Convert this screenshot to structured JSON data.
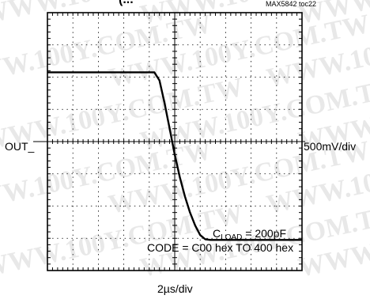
{
  "header": {
    "title_fragment": "(...",
    "doc_id": "MAX5842 toc22"
  },
  "watermark": "WWW.100Y.COM.TW",
  "colors": {
    "trace": "#000000",
    "grid": "#000000",
    "background": "#ffffff"
  },
  "chart_data": {
    "type": "line",
    "channel_label": "OUT_",
    "y_scale_label": "500mV/div",
    "x_scale_label": "2µs/div",
    "grid": true,
    "x_divisions": 10,
    "y_divisions": 8,
    "xlim": [
      0,
      10
    ],
    "ylim": [
      0,
      8
    ],
    "annotations": [
      {
        "main": "C",
        "sub": "LOAD",
        "rest": " = 200pF"
      },
      {
        "text": "CODE = C00 hex TO 400 hex"
      }
    ],
    "series": [
      {
        "points": [
          [
            0,
            6.15
          ],
          [
            4.2,
            6.15
          ],
          [
            4.4,
            5.9
          ],
          [
            4.6,
            5.2
          ],
          [
            4.8,
            4.4
          ],
          [
            5.0,
            3.6
          ],
          [
            5.2,
            2.9
          ],
          [
            5.4,
            2.3
          ],
          [
            5.6,
            1.8
          ],
          [
            5.8,
            1.4
          ],
          [
            6.0,
            1.1
          ],
          [
            6.2,
            0.97
          ],
          [
            6.4,
            0.95
          ],
          [
            10,
            0.95
          ]
        ]
      }
    ]
  }
}
